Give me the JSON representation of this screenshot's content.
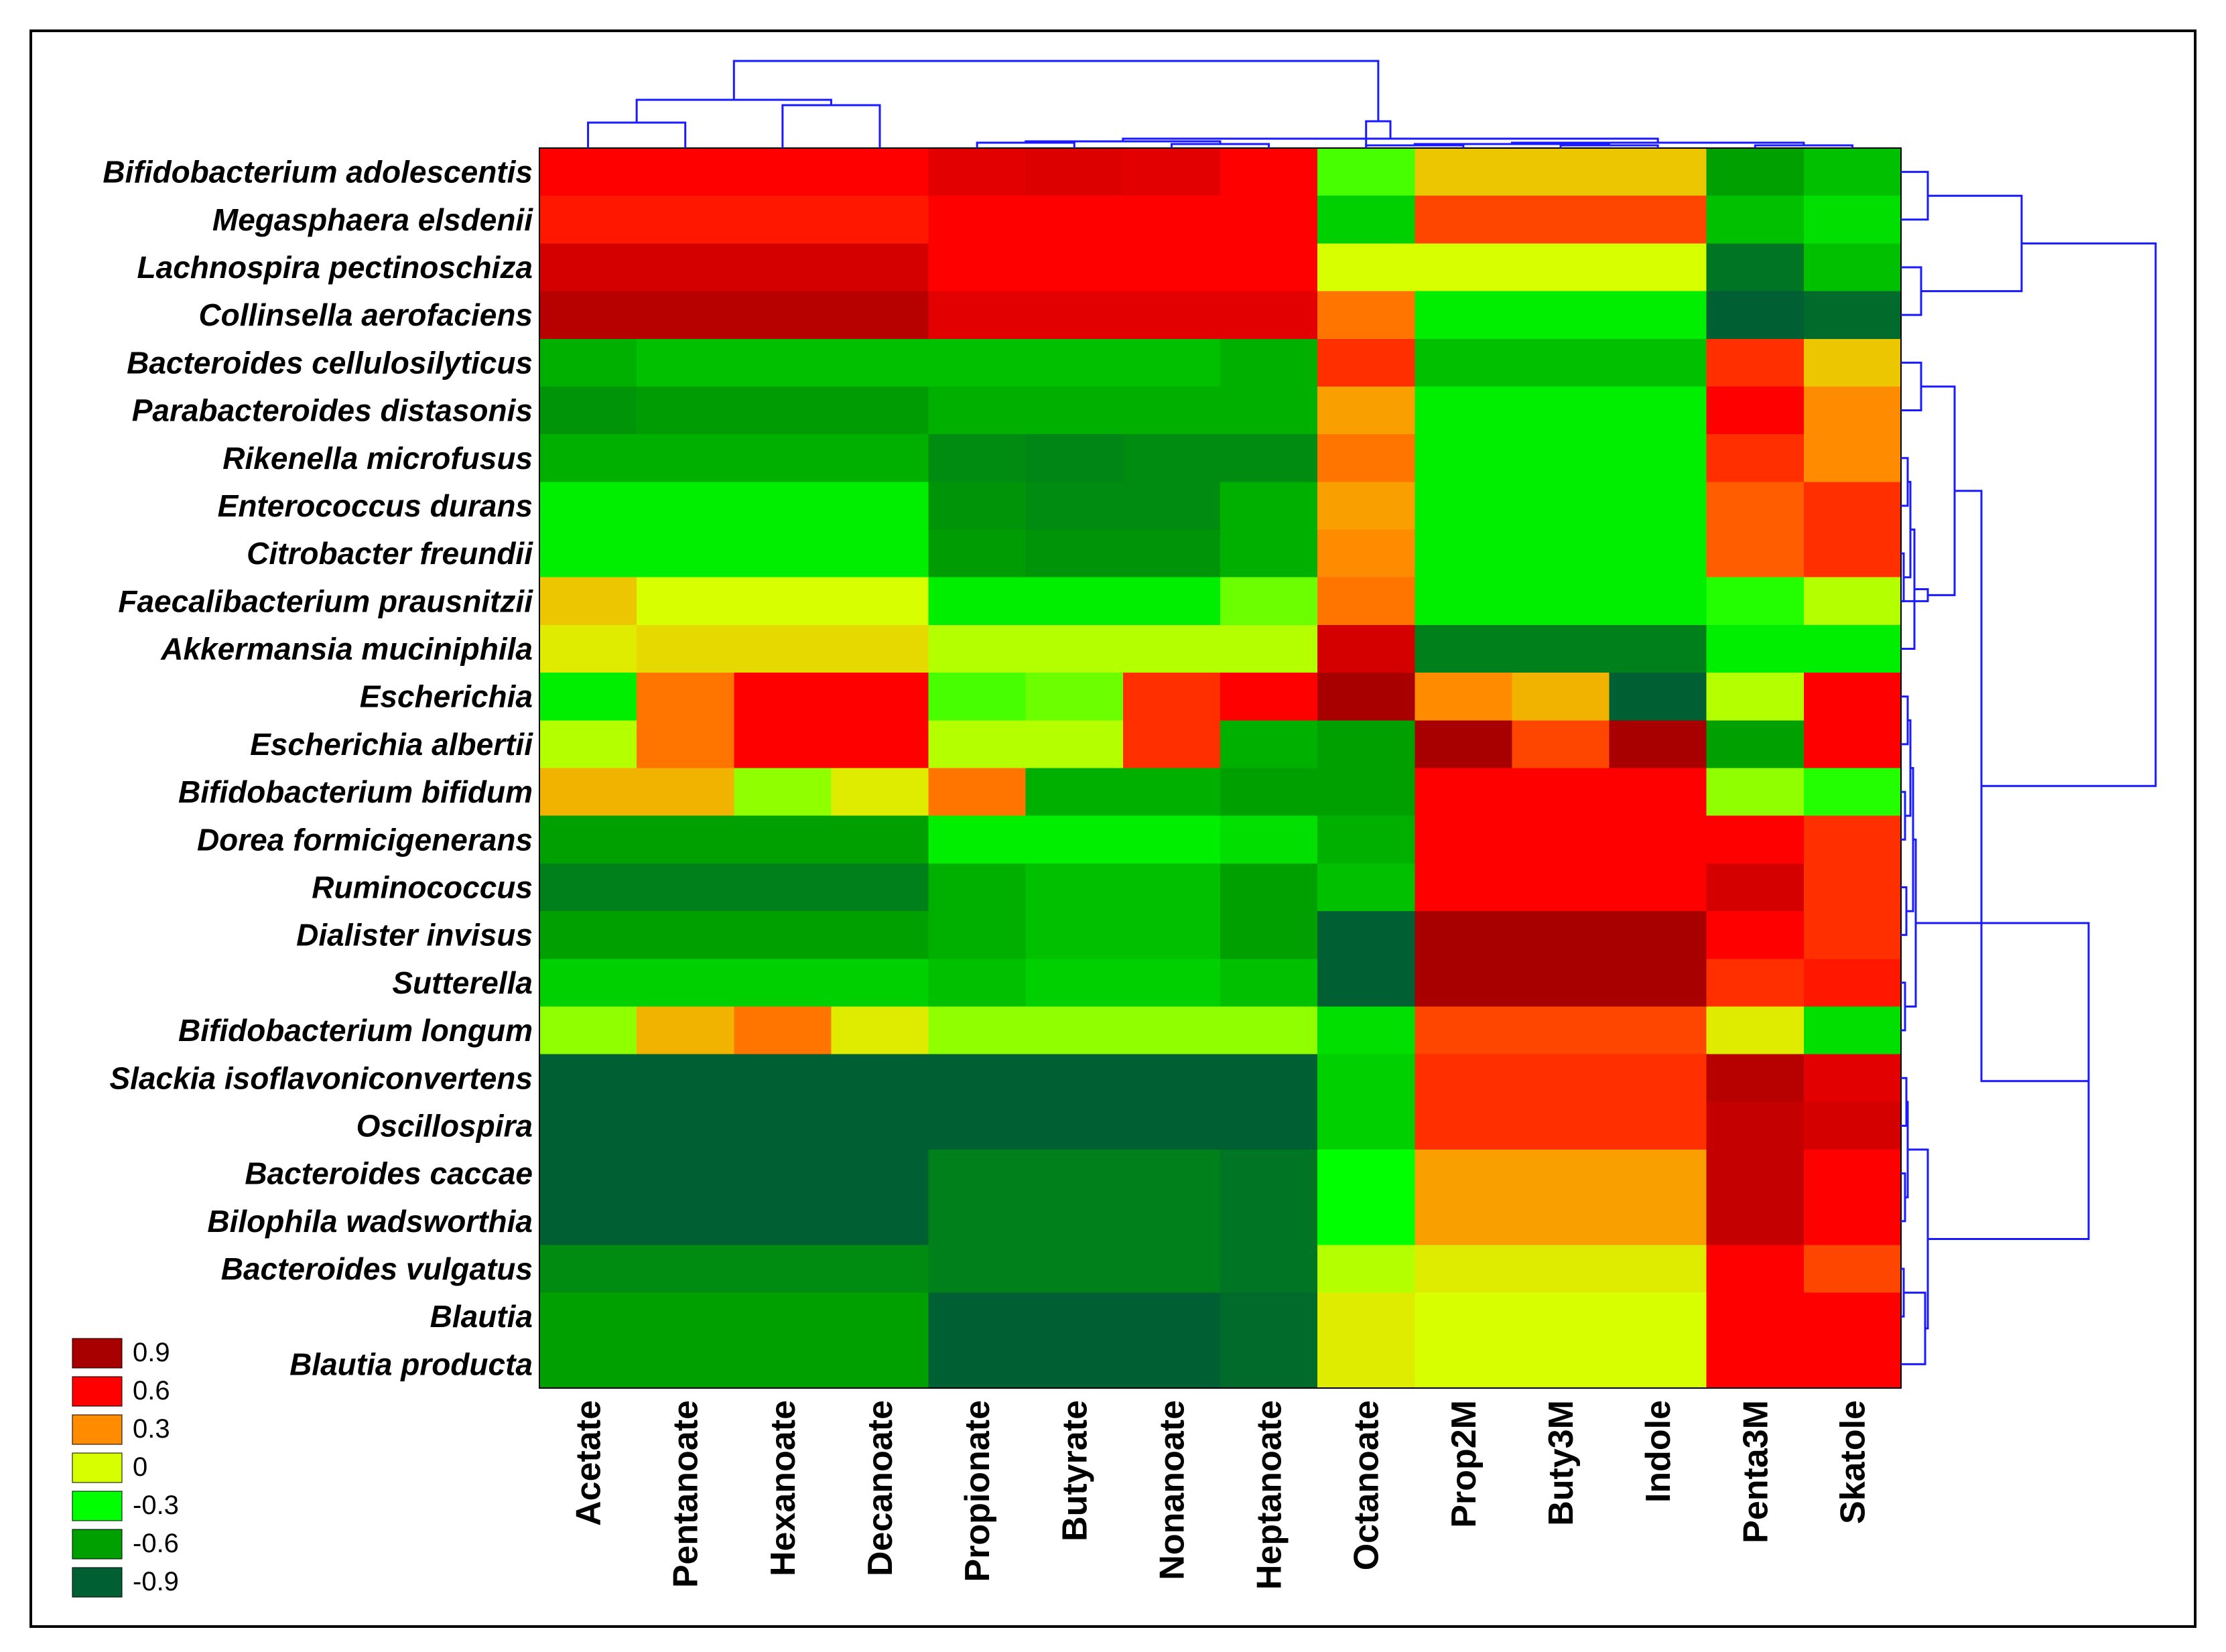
{
  "chart_data": {
    "type": "heatmap",
    "title": "",
    "rows": [
      "Bifidobacterium adolescentis",
      "Megasphaera elsdenii",
      "Lachnospira pectinoschiza",
      "Collinsella aerofaciens",
      "Bacteroides cellulosilyticus",
      "Parabacteroides distasonis",
      "Rikenella microfusus",
      "Enterococcus durans",
      "Citrobacter freundii",
      "Faecalibacterium prausnitzii",
      "Akkermansia muciniphila",
      "Escherichia",
      "Escherichia albertii",
      "Bifidobacterium bifidum",
      "Dorea formicigenerans",
      "Ruminococcus",
      "Dialister invisus",
      "Sutterella",
      "Bifidobacterium longum",
      "Slackia isoflavoniconvertens",
      "Oscillospira",
      "Bacteroides caccae",
      "Bilophila wadsworthia",
      "Bacteroides vulgatus",
      "Blautia",
      "Blautia producta"
    ],
    "columns": [
      "Acetate",
      "Pentanoate",
      "Hexanoate",
      "Decanoate",
      "Propionate",
      "Butyrate",
      "Nonanoate",
      "Heptanoate",
      "Octanoate",
      "Prop2M",
      "Buty3M",
      "Indole",
      "Penta3M",
      "Skatole"
    ],
    "values": [
      [
        0.6,
        0.6,
        0.6,
        0.6,
        0.7,
        0.72,
        0.7,
        0.6,
        -0.2,
        0.15,
        0.15,
        0.15,
        -0.6,
        -0.5
      ],
      [
        0.55,
        0.55,
        0.55,
        0.55,
        0.6,
        0.6,
        0.6,
        0.6,
        -0.45,
        0.45,
        0.45,
        0.45,
        -0.5,
        -0.4
      ],
      [
        0.75,
        0.75,
        0.75,
        0.75,
        0.6,
        0.6,
        0.6,
        0.6,
        0.0,
        0.0,
        0.0,
        0.0,
        -0.8,
        -0.5
      ],
      [
        0.85,
        0.85,
        0.85,
        0.85,
        0.7,
        0.7,
        0.7,
        0.7,
        0.35,
        -0.35,
        -0.35,
        -0.35,
        -0.95,
        -0.85
      ],
      [
        -0.55,
        -0.5,
        -0.5,
        -0.5,
        -0.5,
        -0.5,
        -0.5,
        -0.55,
        0.5,
        -0.5,
        -0.5,
        -0.5,
        0.5,
        0.15
      ],
      [
        -0.65,
        -0.62,
        -0.62,
        -0.62,
        -0.55,
        -0.55,
        -0.55,
        -0.55,
        0.25,
        -0.35,
        -0.35,
        -0.35,
        0.6,
        0.3
      ],
      [
        -0.55,
        -0.55,
        -0.55,
        -0.55,
        -0.7,
        -0.72,
        -0.7,
        -0.7,
        0.35,
        -0.35,
        -0.35,
        -0.35,
        0.5,
        0.3
      ],
      [
        -0.35,
        -0.35,
        -0.35,
        -0.35,
        -0.65,
        -0.7,
        -0.7,
        -0.55,
        0.25,
        -0.35,
        -0.35,
        -0.35,
        0.4,
        0.5
      ],
      [
        -0.35,
        -0.35,
        -0.35,
        -0.35,
        -0.62,
        -0.65,
        -0.65,
        -0.55,
        0.3,
        -0.35,
        -0.35,
        -0.35,
        0.4,
        0.5
      ],
      [
        0.15,
        0.0,
        0.0,
        0.0,
        -0.35,
        -0.35,
        -0.35,
        -0.15,
        0.35,
        -0.35,
        -0.35,
        -0.35,
        -0.25,
        -0.05
      ],
      [
        0.05,
        0.1,
        0.1,
        0.1,
        -0.05,
        -0.05,
        -0.05,
        -0.05,
        0.75,
        -0.75,
        -0.75,
        -0.75,
        -0.35,
        -0.35
      ],
      [
        -0.35,
        0.35,
        0.6,
        0.6,
        -0.2,
        -0.15,
        0.5,
        0.6,
        0.9,
        0.3,
        0.2,
        -0.9,
        -0.05,
        0.6
      ],
      [
        -0.05,
        0.35,
        0.6,
        0.6,
        -0.05,
        -0.05,
        0.5,
        -0.55,
        -0.6,
        0.9,
        0.45,
        0.9,
        -0.6,
        0.6
      ],
      [
        0.2,
        0.2,
        -0.1,
        0.05,
        0.35,
        -0.55,
        -0.55,
        -0.6,
        -0.6,
        0.6,
        0.6,
        0.6,
        -0.1,
        -0.25
      ],
      [
        -0.6,
        -0.6,
        -0.6,
        -0.6,
        -0.35,
        -0.35,
        -0.35,
        -0.4,
        -0.55,
        0.6,
        0.6,
        0.6,
        0.6,
        0.5
      ],
      [
        -0.75,
        -0.75,
        -0.75,
        -0.75,
        -0.55,
        -0.5,
        -0.5,
        -0.6,
        -0.5,
        0.6,
        0.6,
        0.6,
        0.75,
        0.5
      ],
      [
        -0.6,
        -0.6,
        -0.6,
        -0.6,
        -0.55,
        -0.5,
        -0.5,
        -0.6,
        -0.9,
        0.9,
        0.9,
        0.9,
        0.6,
        0.5
      ],
      [
        -0.45,
        -0.45,
        -0.45,
        -0.45,
        -0.5,
        -0.45,
        -0.45,
        -0.5,
        -0.9,
        0.9,
        0.9,
        0.9,
        0.5,
        0.55
      ],
      [
        -0.1,
        0.2,
        0.35,
        0.05,
        -0.1,
        -0.1,
        -0.1,
        -0.1,
        -0.4,
        0.45,
        0.45,
        0.45,
        0.05,
        -0.4
      ],
      [
        -0.95,
        -0.95,
        -0.95,
        -0.95,
        -0.9,
        -0.9,
        -0.9,
        -0.9,
        -0.45,
        0.5,
        0.5,
        0.5,
        0.85,
        0.7
      ],
      [
        -0.9,
        -0.95,
        -0.95,
        -0.95,
        -0.95,
        -0.95,
        -0.95,
        -0.95,
        -0.45,
        0.5,
        0.5,
        0.5,
        0.8,
        0.75
      ],
      [
        -0.9,
        -0.9,
        -0.9,
        -0.9,
        -0.75,
        -0.75,
        -0.75,
        -0.8,
        -0.3,
        0.25,
        0.25,
        0.25,
        0.8,
        0.6
      ],
      [
        -0.9,
        -0.9,
        -0.9,
        -0.9,
        -0.75,
        -0.75,
        -0.75,
        -0.8,
        -0.3,
        0.25,
        0.25,
        0.25,
        0.8,
        0.6
      ],
      [
        -0.7,
        -0.7,
        -0.7,
        -0.7,
        -0.75,
        -0.75,
        -0.75,
        -0.8,
        -0.05,
        0.05,
        0.05,
        0.05,
        0.6,
        0.45
      ],
      [
        -0.6,
        -0.6,
        -0.6,
        -0.6,
        -0.9,
        -0.9,
        -0.9,
        -0.85,
        0.05,
        0.0,
        0.0,
        0.0,
        0.6,
        0.6
      ],
      [
        -0.6,
        -0.6,
        -0.6,
        -0.6,
        -0.9,
        -0.9,
        -0.9,
        -0.85,
        0.05,
        0.0,
        0.0,
        0.0,
        0.6,
        0.6
      ]
    ],
    "scale": {
      "min": -0.9,
      "max": 0.9,
      "stops": [
        {
          "value": -0.9,
          "color": "#006034"
        },
        {
          "value": -0.6,
          "color": "#00a000"
        },
        {
          "value": -0.3,
          "color": "#00ff00"
        },
        {
          "value": 0,
          "color": "#d8ff00"
        },
        {
          "value": 0.3,
          "color": "#ff8c00"
        },
        {
          "value": 0.6,
          "color": "#ff0000"
        },
        {
          "value": 0.9,
          "color": "#a80000"
        }
      ]
    },
    "legend": {
      "placement": "bottom-left",
      "labels": [
        "0.9",
        "0.6",
        "0.3",
        "0",
        "-0.3",
        "-0.6",
        "-0.9"
      ],
      "colors": [
        "#a80000",
        "#ff0000",
        "#ff8c00",
        "#d8ff00",
        "#00ff00",
        "#00a000",
        "#006034"
      ]
    },
    "dendrograms": {
      "columns": "top",
      "rows": "right",
      "color": "#1a1aff"
    }
  }
}
